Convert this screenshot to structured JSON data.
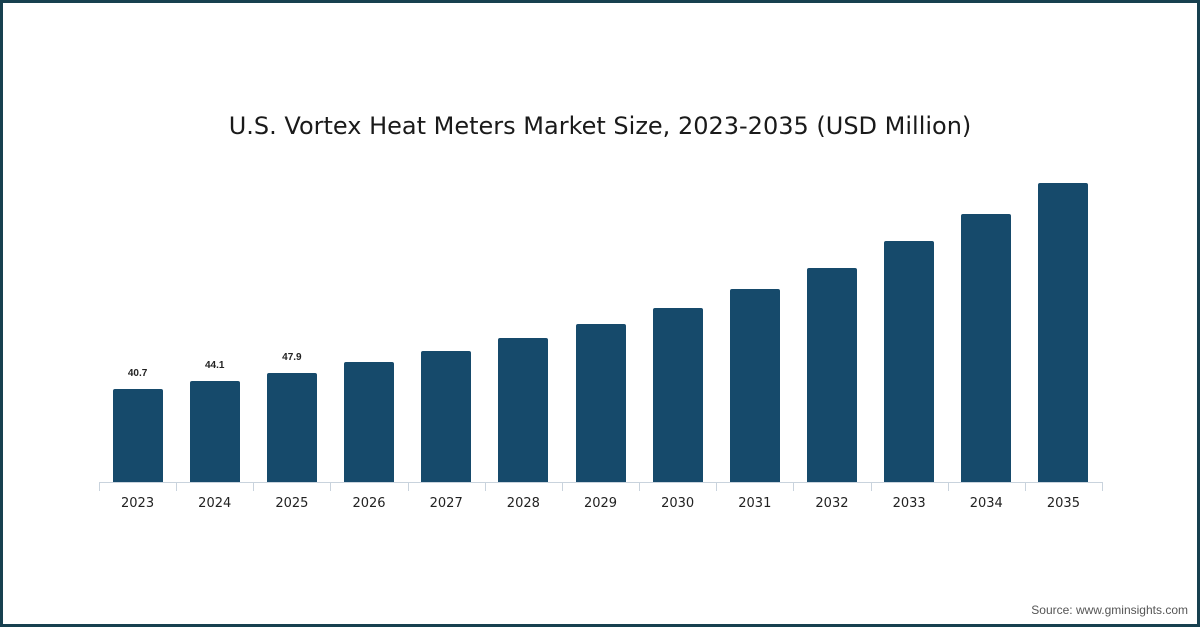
{
  "chart_data": {
    "type": "bar",
    "title": "U.S. Vortex Heat Meters Market Size, 2023-2035 (USD Million)",
    "xlabel": "",
    "ylabel": "",
    "categories": [
      "2023",
      "2024",
      "2025",
      "2026",
      "2027",
      "2028",
      "2029",
      "2030",
      "2031",
      "2032",
      "2033",
      "2034",
      "2035"
    ],
    "values": [
      40.7,
      44.1,
      47.9,
      52.5,
      57.3,
      63.0,
      69.1,
      76.1,
      84.5,
      93.7,
      105.5,
      117.3,
      130.9
    ],
    "data_labels": {
      "2023": "40.7",
      "2024": "44.1",
      "2025": "47.9"
    },
    "ylim": [
      0,
      145
    ],
    "grid": false,
    "legend": null,
    "bar_color": "#164a6b"
  },
  "footer": {
    "source": "Source: www.gminsights.com"
  },
  "colors": {
    "frame": "#17404f",
    "bar": "#164a6b",
    "axis": "#c9d3dd"
  }
}
